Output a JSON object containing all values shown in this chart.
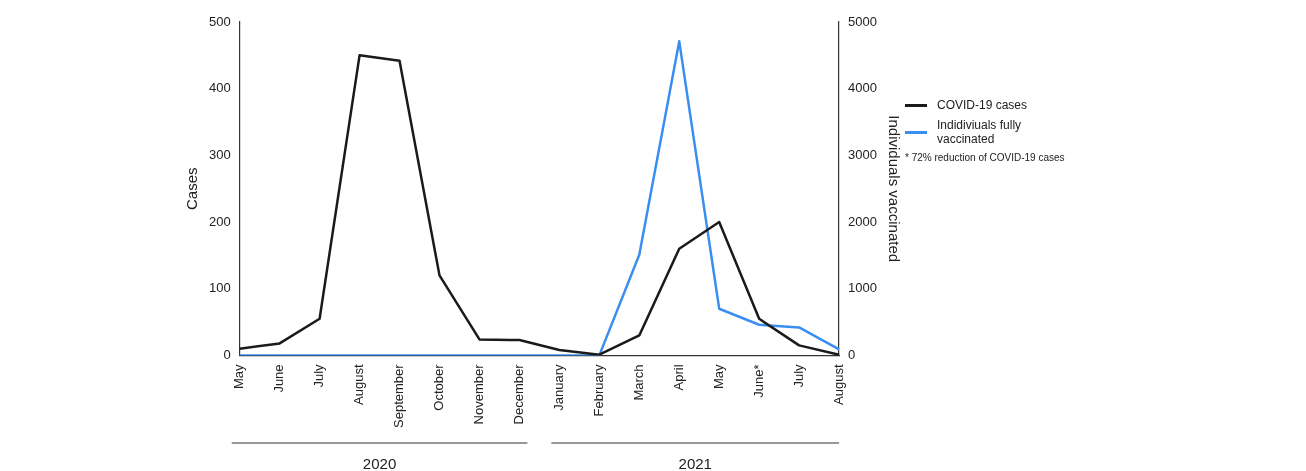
{
  "chart_data": {
    "type": "line",
    "ylabel": "Cases",
    "y2label": "Individuals vaccinated",
    "categories": [
      "May",
      "June",
      "July",
      "August",
      "September",
      "October",
      "November",
      "December",
      "January",
      "February",
      "March",
      "April",
      "May",
      "June*",
      "July",
      "August"
    ],
    "series": [
      {
        "name": "COVID-19 cases",
        "color": "#1a1a1a",
        "values": [
          10,
          18,
          55,
          450,
          442,
          120,
          24,
          23,
          8,
          1,
          30,
          160,
          200,
          55,
          15,
          1
        ]
      },
      {
        "name": "Indidiviuals fully vaccinated",
        "color": "#3a8ef0",
        "axis": "y2",
        "values": [
          0,
          0,
          0,
          0,
          0,
          0,
          0,
          0,
          0,
          0,
          1510,
          4710,
          700,
          460,
          420,
          90
        ]
      }
    ],
    "ylim": [
      0,
      500
    ],
    "yticks": [
      0,
      100,
      200,
      300,
      400,
      500
    ],
    "y2lim": [
      0,
      5000
    ],
    "y2ticks": [
      0,
      1000,
      2000,
      3000,
      4000,
      5000
    ],
    "grid": false,
    "legend": "right",
    "marker": "none",
    "line_style": "solid",
    "annotations": [
      "* 72% reduction of COVID-19 cases",
      "2020",
      "2021"
    ]
  }
}
